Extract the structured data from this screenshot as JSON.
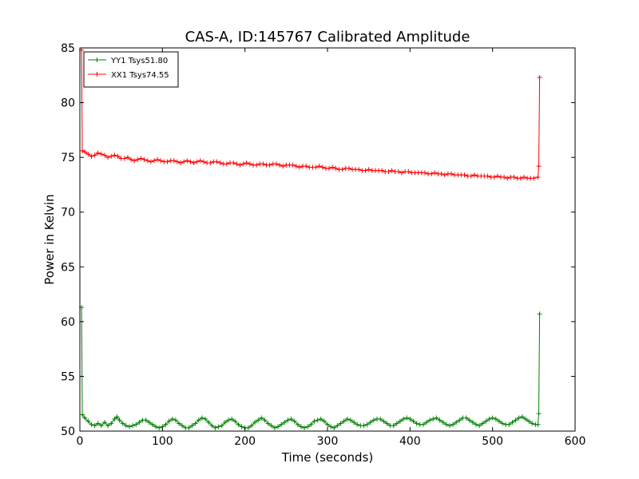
{
  "chart_data": {
    "type": "line",
    "title": "CAS-A, ID:145767 Calibrated Amplitude",
    "xlabel": "Time (seconds)",
    "ylabel": "Power in Kelvin",
    "xlim": [
      0,
      600
    ],
    "ylim": [
      50,
      85
    ],
    "xticks": [
      0,
      100,
      200,
      300,
      400,
      500,
      600
    ],
    "yticks": [
      50,
      55,
      60,
      65,
      70,
      75,
      80,
      85
    ],
    "grid": false,
    "legend_position": "top-left",
    "marker": "plus",
    "series": [
      {
        "name": "YY1 Tsys51.80",
        "color": "#008000",
        "points": [
          [
            2,
            61.3
          ],
          [
            3,
            51.5
          ],
          [
            6,
            51.2
          ],
          [
            10,
            50.9
          ],
          [
            14,
            50.6
          ],
          [
            18,
            50.5
          ],
          [
            22,
            50.7
          ],
          [
            26,
            50.5
          ],
          [
            30,
            50.8
          ],
          [
            34,
            50.5
          ],
          [
            38,
            50.7
          ],
          [
            42,
            51.1
          ],
          [
            45,
            51.3
          ],
          [
            48,
            51.0
          ],
          [
            52,
            50.7
          ],
          [
            56,
            50.5
          ],
          [
            60,
            50.4
          ],
          [
            64,
            50.5
          ],
          [
            68,
            50.6
          ],
          [
            72,
            50.8
          ],
          [
            76,
            51.0
          ],
          [
            80,
            51.0
          ],
          [
            84,
            50.8
          ],
          [
            88,
            50.6
          ],
          [
            92,
            50.4
          ],
          [
            96,
            50.3
          ],
          [
            100,
            50.4
          ],
          [
            104,
            50.6
          ],
          [
            108,
            50.9
          ],
          [
            112,
            51.1
          ],
          [
            116,
            51.0
          ],
          [
            120,
            50.7
          ],
          [
            124,
            50.5
          ],
          [
            128,
            50.3
          ],
          [
            132,
            50.3
          ],
          [
            136,
            50.5
          ],
          [
            140,
            50.7
          ],
          [
            144,
            51.0
          ],
          [
            148,
            51.2
          ],
          [
            152,
            51.1
          ],
          [
            156,
            50.8
          ],
          [
            160,
            50.5
          ],
          [
            164,
            50.3
          ],
          [
            168,
            50.4
          ],
          [
            172,
            50.5
          ],
          [
            176,
            50.8
          ],
          [
            180,
            51.0
          ],
          [
            184,
            51.1
          ],
          [
            188,
            50.9
          ],
          [
            192,
            50.6
          ],
          [
            196,
            50.4
          ],
          [
            200,
            50.3
          ],
          [
            204,
            50.3
          ],
          [
            208,
            50.5
          ],
          [
            212,
            50.8
          ],
          [
            216,
            51.0
          ],
          [
            220,
            51.2
          ],
          [
            224,
            51.0
          ],
          [
            228,
            50.7
          ],
          [
            232,
            50.5
          ],
          [
            236,
            50.3
          ],
          [
            240,
            50.4
          ],
          [
            244,
            50.6
          ],
          [
            248,
            50.8
          ],
          [
            252,
            51.0
          ],
          [
            256,
            51.1
          ],
          [
            260,
            50.9
          ],
          [
            264,
            50.6
          ],
          [
            268,
            50.4
          ],
          [
            272,
            50.3
          ],
          [
            276,
            50.4
          ],
          [
            280,
            50.6
          ],
          [
            284,
            50.9
          ],
          [
            288,
            51.0
          ],
          [
            292,
            51.1
          ],
          [
            296,
            50.9
          ],
          [
            300,
            50.6
          ],
          [
            304,
            50.4
          ],
          [
            308,
            50.3
          ],
          [
            312,
            50.5
          ],
          [
            316,
            50.7
          ],
          [
            320,
            50.9
          ],
          [
            324,
            51.1
          ],
          [
            328,
            51.0
          ],
          [
            332,
            50.8
          ],
          [
            336,
            50.6
          ],
          [
            340,
            50.5
          ],
          [
            344,
            50.5
          ],
          [
            348,
            50.6
          ],
          [
            352,
            50.8
          ],
          [
            356,
            51.0
          ],
          [
            360,
            51.1
          ],
          [
            364,
            51.1
          ],
          [
            368,
            50.9
          ],
          [
            372,
            50.7
          ],
          [
            376,
            50.5
          ],
          [
            380,
            50.5
          ],
          [
            384,
            50.7
          ],
          [
            388,
            50.9
          ],
          [
            392,
            51.1
          ],
          [
            396,
            51.2
          ],
          [
            400,
            51.1
          ],
          [
            404,
            50.9
          ],
          [
            408,
            50.7
          ],
          [
            412,
            50.6
          ],
          [
            416,
            50.6
          ],
          [
            420,
            50.8
          ],
          [
            424,
            51.0
          ],
          [
            428,
            51.1
          ],
          [
            432,
            51.2
          ],
          [
            436,
            51.0
          ],
          [
            440,
            50.8
          ],
          [
            444,
            50.6
          ],
          [
            448,
            50.5
          ],
          [
            452,
            50.6
          ],
          [
            456,
            50.8
          ],
          [
            460,
            51.0
          ],
          [
            464,
            51.2
          ],
          [
            468,
            51.2
          ],
          [
            472,
            51.0
          ],
          [
            476,
            50.8
          ],
          [
            480,
            50.6
          ],
          [
            484,
            50.5
          ],
          [
            488,
            50.7
          ],
          [
            492,
            50.9
          ],
          [
            496,
            51.1
          ],
          [
            500,
            51.2
          ],
          [
            504,
            51.1
          ],
          [
            508,
            50.9
          ],
          [
            512,
            50.7
          ],
          [
            516,
            50.6
          ],
          [
            520,
            50.6
          ],
          [
            524,
            50.8
          ],
          [
            528,
            51.0
          ],
          [
            532,
            51.2
          ],
          [
            536,
            51.3
          ],
          [
            540,
            51.1
          ],
          [
            544,
            50.9
          ],
          [
            548,
            50.7
          ],
          [
            552,
            50.6
          ],
          [
            555,
            50.6
          ],
          [
            556,
            51.6
          ],
          [
            557,
            60.7
          ]
        ]
      },
      {
        "name": "XX1 Tsys74.55",
        "color": "#ff0000",
        "points": [
          [
            2,
            84.8
          ],
          [
            3,
            75.6
          ],
          [
            6,
            75.5
          ],
          [
            10,
            75.3
          ],
          [
            14,
            75.1
          ],
          [
            18,
            75.2
          ],
          [
            22,
            75.4
          ],
          [
            26,
            75.3
          ],
          [
            30,
            75.2
          ],
          [
            34,
            75.0
          ],
          [
            38,
            75.1
          ],
          [
            42,
            75.2
          ],
          [
            46,
            75.1
          ],
          [
            50,
            74.9
          ],
          [
            54,
            74.9
          ],
          [
            58,
            75.0
          ],
          [
            62,
            74.8
          ],
          [
            66,
            74.7
          ],
          [
            70,
            74.8
          ],
          [
            74,
            74.9
          ],
          [
            78,
            74.8
          ],
          [
            82,
            74.7
          ],
          [
            86,
            74.6
          ],
          [
            90,
            74.7
          ],
          [
            94,
            74.8
          ],
          [
            98,
            74.7
          ],
          [
            102,
            74.6
          ],
          [
            106,
            74.6
          ],
          [
            110,
            74.7
          ],
          [
            114,
            74.7
          ],
          [
            118,
            74.6
          ],
          [
            122,
            74.5
          ],
          [
            126,
            74.6
          ],
          [
            130,
            74.7
          ],
          [
            134,
            74.6
          ],
          [
            138,
            74.5
          ],
          [
            142,
            74.6
          ],
          [
            146,
            74.7
          ],
          [
            150,
            74.6
          ],
          [
            154,
            74.5
          ],
          [
            158,
            74.5
          ],
          [
            162,
            74.6
          ],
          [
            166,
            74.6
          ],
          [
            170,
            74.5
          ],
          [
            174,
            74.4
          ],
          [
            178,
            74.4
          ],
          [
            182,
            74.5
          ],
          [
            186,
            74.5
          ],
          [
            190,
            74.4
          ],
          [
            194,
            74.3
          ],
          [
            198,
            74.4
          ],
          [
            202,
            74.5
          ],
          [
            206,
            74.4
          ],
          [
            210,
            74.3
          ],
          [
            214,
            74.3
          ],
          [
            218,
            74.4
          ],
          [
            222,
            74.4
          ],
          [
            226,
            74.3
          ],
          [
            230,
            74.3
          ],
          [
            234,
            74.4
          ],
          [
            238,
            74.4
          ],
          [
            242,
            74.3
          ],
          [
            246,
            74.2
          ],
          [
            250,
            74.3
          ],
          [
            254,
            74.3
          ],
          [
            258,
            74.3
          ],
          [
            262,
            74.2
          ],
          [
            266,
            74.1
          ],
          [
            270,
            74.2
          ],
          [
            274,
            74.2
          ],
          [
            278,
            74.1
          ],
          [
            282,
            74.1
          ],
          [
            286,
            74.1
          ],
          [
            290,
            74.2
          ],
          [
            294,
            74.1
          ],
          [
            298,
            74.0
          ],
          [
            302,
            74.0
          ],
          [
            306,
            74.1
          ],
          [
            310,
            74.0
          ],
          [
            314,
            73.9
          ],
          [
            318,
            73.9
          ],
          [
            322,
            74.0
          ],
          [
            326,
            74.0
          ],
          [
            330,
            73.9
          ],
          [
            334,
            73.9
          ],
          [
            338,
            73.9
          ],
          [
            342,
            73.8
          ],
          [
            346,
            73.8
          ],
          [
            350,
            73.9
          ],
          [
            354,
            73.8
          ],
          [
            358,
            73.8
          ],
          [
            362,
            73.8
          ],
          [
            366,
            73.8
          ],
          [
            370,
            73.7
          ],
          [
            374,
            73.7
          ],
          [
            378,
            73.8
          ],
          [
            382,
            73.7
          ],
          [
            386,
            73.7
          ],
          [
            390,
            73.6
          ],
          [
            394,
            73.7
          ],
          [
            398,
            73.7
          ],
          [
            402,
            73.6
          ],
          [
            406,
            73.6
          ],
          [
            410,
            73.6
          ],
          [
            414,
            73.6
          ],
          [
            418,
            73.6
          ],
          [
            422,
            73.5
          ],
          [
            426,
            73.5
          ],
          [
            430,
            73.6
          ],
          [
            434,
            73.5
          ],
          [
            438,
            73.5
          ],
          [
            442,
            73.4
          ],
          [
            446,
            73.5
          ],
          [
            450,
            73.5
          ],
          [
            454,
            73.4
          ],
          [
            458,
            73.4
          ],
          [
            462,
            73.4
          ],
          [
            466,
            73.4
          ],
          [
            470,
            73.3
          ],
          [
            474,
            73.3
          ],
          [
            478,
            73.4
          ],
          [
            482,
            73.3
          ],
          [
            486,
            73.3
          ],
          [
            490,
            73.3
          ],
          [
            494,
            73.3
          ],
          [
            498,
            73.2
          ],
          [
            502,
            73.2
          ],
          [
            506,
            73.3
          ],
          [
            510,
            73.2
          ],
          [
            514,
            73.2
          ],
          [
            518,
            73.1
          ],
          [
            522,
            73.2
          ],
          [
            526,
            73.2
          ],
          [
            530,
            73.1
          ],
          [
            534,
            73.1
          ],
          [
            538,
            73.2
          ],
          [
            542,
            73.1
          ],
          [
            546,
            73.1
          ],
          [
            550,
            73.1
          ],
          [
            555,
            73.2
          ],
          [
            556,
            74.2
          ],
          [
            557,
            82.3
          ]
        ]
      }
    ]
  }
}
